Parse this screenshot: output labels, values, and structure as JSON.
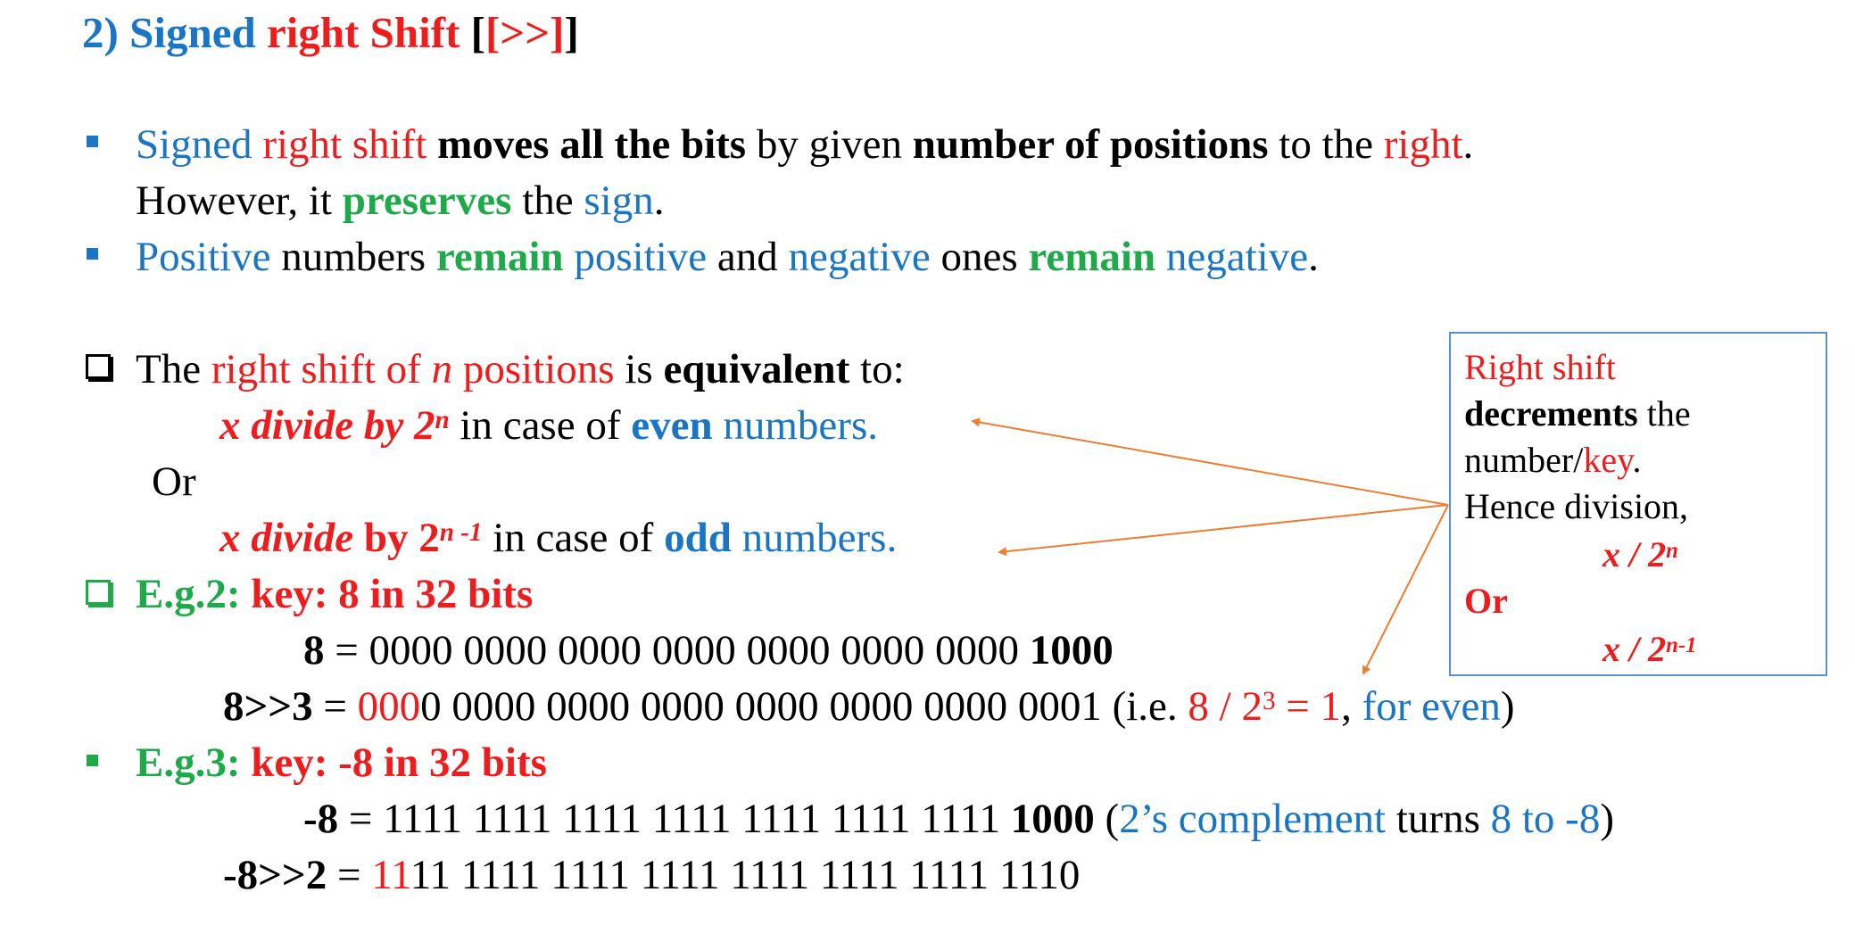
{
  "title": {
    "num": "2)",
    "signed": "Signed",
    "right_shift": "right Shift",
    "op": "[>>]"
  },
  "bullet1": {
    "signed": "Signed",
    "right_shift": " right shift ",
    "moves": "moves all the bits",
    "by_given": " by given ",
    "num_pos": "number of positions",
    "to_the": " to the ",
    "right": "right",
    "dot": ".",
    "however": "However, it ",
    "preserves": "preserves",
    "the": " the ",
    "sign": "sign",
    "dot2": "."
  },
  "bullet2": {
    "positive": "Positive",
    "numbers": " numbers ",
    "remain": "remain",
    "positive2": " positive",
    "and": " and ",
    "negative": "negative",
    "ones": " ones ",
    "remain2": "remain",
    "negative2": " negative",
    "dot": "."
  },
  "equiv": {
    "the": "The ",
    "right_shift_of": "right shift of ",
    "n": "n",
    "positions": " positions",
    "is": " is ",
    "equivalent": "equivalent",
    "to": " to:"
  },
  "even_line": {
    "x_divide_by": "x divide by 2",
    "n": "n",
    "in_case": " in case of ",
    "even": "even",
    "numbers": " numbers."
  },
  "or_text": "Or",
  "odd_line": {
    "x_divide": "x divide",
    "by": " by 2",
    "n1": "n -1",
    "in_case": " in case of ",
    "odd": "odd",
    "numbers": " numbers."
  },
  "eg2": {
    "heading_green": "E.g.2:",
    "heading_red": " key: 8 in 32 bits",
    "row1_lhs": "8",
    "row1_eq": " = 0000 0000 0000 0000 0000 0000 0000 ",
    "row1_last": "1000",
    "row2_lhs": "8>>3",
    "row2_eq": " = ",
    "row2_red": "000",
    "row2_rest": "0 0000 0000 0000 0000 0000 0000 0001 (i.e. ",
    "row2_expr": "8 / 2",
    "row2_exp": "3",
    "row2_eq1": " = 1",
    "row2_comma": ", ",
    "row2_for_even": "for even",
    "row2_close": ")"
  },
  "eg3": {
    "heading_green": "E.g.3:",
    "heading_red": " key: -8 in 32 bits",
    "row1_lhs": "-8",
    "row1_eq": " = 1111 1111 1111 1111 1111 1111 1111 ",
    "row1_last": "1000",
    "row1_open": " (",
    "row1_twos": "2’s complement",
    "row1_turns": " turns ",
    "row1_8to": "8 to -8",
    "row1_close": ")",
    "row2_lhs": "-8>>2",
    "row2_eq": " = ",
    "row2_red": "11",
    "row2_rest": "11 1111 1111 1111 1111 1111 1111 1110"
  },
  "note_box": {
    "line1": "Right shift",
    "line2_bold": "decrements",
    "line2_rest": " the",
    "line3_a": "number/",
    "line3_key": "key",
    "line3_dot": ".",
    "line4": "Hence division,",
    "line5_x": "x / 2",
    "line5_n": "n",
    "or": "Or",
    "line7_x": "x / 2",
    "line7_n": "n-1"
  },
  "colors": {
    "red": "#ee1c1c",
    "blue": "#1a75c4",
    "green": "#1faa4a",
    "arrow": "#ed7d31",
    "box_border": "#5a8fd0"
  }
}
